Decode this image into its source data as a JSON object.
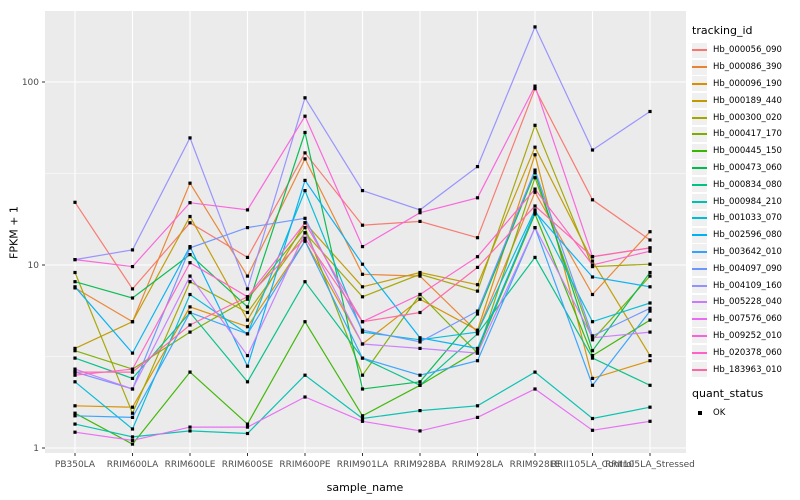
{
  "chart_data": {
    "type": "line",
    "title": "",
    "xlabel": "sample_name",
    "ylabel": "FPKM + 1",
    "y_scale": "log10",
    "y_ticks": [
      "1",
      "10",
      "100"
    ],
    "y_tick_values": [
      1,
      10,
      100
    ],
    "ylim": [
      0.9,
      240
    ],
    "grid": "on",
    "legend_position": "right",
    "panel_bg": "#EBEBEB",
    "grid_color": "#FFFFFF",
    "point_marker": "black-square",
    "value_unit": "FPKM + 1",
    "categories": [
      "PB350LA",
      "RRIM600LA",
      "RRIM600LE",
      "RRIM600SE",
      "RRIM600PE",
      "RRIM901LA",
      "RRIM928BA",
      "RRIM928LA",
      "RRIM928LE",
      "RRII105LA_Control",
      "RRII105LA_Stressed"
    ],
    "series": [
      {
        "name": "Hb_000056_090",
        "color": "#F8766D",
        "values": [
          22,
          7.4,
          17,
          11,
          41,
          16.5,
          17.3,
          14.1,
          92,
          22.7,
          13.7
        ]
      },
      {
        "name": "Hb_000086_390",
        "color": "#EA8331",
        "values": [
          7.5,
          4.9,
          28,
          8.7,
          38,
          8.9,
          8.7,
          4.3,
          25,
          6.9,
          15.2
        ]
      },
      {
        "name": "Hb_000096_190",
        "color": "#D89000",
        "values": [
          1.7,
          1.67,
          5.9,
          4.6,
          13.5,
          3.7,
          6.5,
          4.4,
          40,
          2.4,
          3.0
        ]
      },
      {
        "name": "Hb_000189_440",
        "color": "#C09B00",
        "values": [
          3.5,
          4.9,
          18.4,
          5.0,
          17,
          7.6,
          9.1,
          7.8,
          44,
          10.5,
          3.2
        ]
      },
      {
        "name": "Hb_000300_020",
        "color": "#A3A500",
        "values": [
          9.1,
          1.55,
          8.1,
          5.5,
          15,
          6.7,
          8.9,
          7.2,
          58,
          9.8,
          10.1
        ]
      },
      {
        "name": "Hb_000417_170",
        "color": "#7CAE00",
        "values": [
          3.4,
          2.7,
          4.3,
          6.5,
          16,
          2.5,
          6.9,
          3.3,
          30,
          3.9,
          8.7
        ]
      },
      {
        "name": "Hb_000445_150",
        "color": "#39B600",
        "values": [
          1.55,
          1.05,
          2.6,
          1.35,
          4.9,
          1.5,
          2.2,
          3.4,
          19,
          3.2,
          5.0
        ]
      },
      {
        "name": "Hb_000473_060",
        "color": "#00BB4E",
        "values": [
          8.1,
          6.6,
          11.4,
          5.9,
          53,
          2.1,
          2.3,
          5.4,
          32,
          3.4,
          9.1
        ]
      },
      {
        "name": "Hb_000834_080",
        "color": "#00C087",
        "values": [
          3.1,
          2.4,
          5.5,
          2.3,
          8.1,
          3.1,
          2.2,
          4.2,
          11.0,
          3.1,
          2.2
        ]
      },
      {
        "name": "Hb_000984_210",
        "color": "#00C0AF",
        "values": [
          1.35,
          1.15,
          1.24,
          1.2,
          2.5,
          1.45,
          1.6,
          1.7,
          2.6,
          1.45,
          1.67
        ]
      },
      {
        "name": "Hb_001033_070",
        "color": "#00BCD8",
        "values": [
          2.3,
          1.27,
          6.9,
          4.2,
          25.5,
          4.3,
          3.9,
          4.3,
          20,
          4.9,
          6.2
        ]
      },
      {
        "name": "Hb_002596_080",
        "color": "#00B0F6",
        "values": [
          7.6,
          3.3,
          12.6,
          2.8,
          29,
          10.1,
          4.0,
          3.5,
          19.5,
          8.6,
          7.6
        ]
      },
      {
        "name": "Hb_003642_010",
        "color": "#35A2FF",
        "values": [
          1.5,
          1.47,
          5.5,
          4.2,
          13.5,
          3.1,
          2.5,
          3.0,
          16,
          2.2,
          5.6
        ]
      },
      {
        "name": "Hb_004097_090",
        "color": "#6C95FF",
        "values": [
          2.6,
          2.1,
          12.4,
          16,
          18,
          4.4,
          3.8,
          5.6,
          33,
          4.1,
          5.8
        ]
      },
      {
        "name": "Hb_004109_160",
        "color": "#9590FF",
        "values": [
          10.7,
          12.1,
          49.5,
          7.4,
          82,
          25.5,
          20,
          34.5,
          200,
          42.5,
          69
        ]
      },
      {
        "name": "Hb_005228_040",
        "color": "#C77CFF",
        "values": [
          2.7,
          2.1,
          8.7,
          3.2,
          15,
          3.7,
          3.5,
          3.3,
          16,
          4.0,
          4.3
        ]
      },
      {
        "name": "Hb_007576_060",
        "color": "#E76BF3",
        "values": [
          1.22,
          1.1,
          1.3,
          1.3,
          1.9,
          1.4,
          1.24,
          1.47,
          2.1,
          1.25,
          1.4
        ]
      },
      {
        "name": "Hb_009252_010",
        "color": "#FA62DB",
        "values": [
          10.7,
          9.8,
          21.9,
          20,
          65,
          12.6,
          19.3,
          23.3,
          95,
          11.1,
          12.4
        ]
      },
      {
        "name": "Hb_020378_060",
        "color": "#FF61C9",
        "values": [
          2.5,
          2.7,
          10.3,
          6.7,
          17,
          4.9,
          6.9,
          11.1,
          26,
          10.0,
          11.9
        ]
      },
      {
        "name": "Hb_183963_010",
        "color": "#FF67A4",
        "values": [
          2.6,
          2.6,
          4.7,
          6.7,
          14,
          4.9,
          5.5,
          9.7,
          21,
          11.1,
          12.4
        ]
      }
    ],
    "legend": {
      "tracking_id_title": "tracking_id",
      "quant_status_title": "quant_status",
      "quant_status_items": [
        {
          "label": "OK",
          "marker": "black-square"
        }
      ]
    }
  }
}
